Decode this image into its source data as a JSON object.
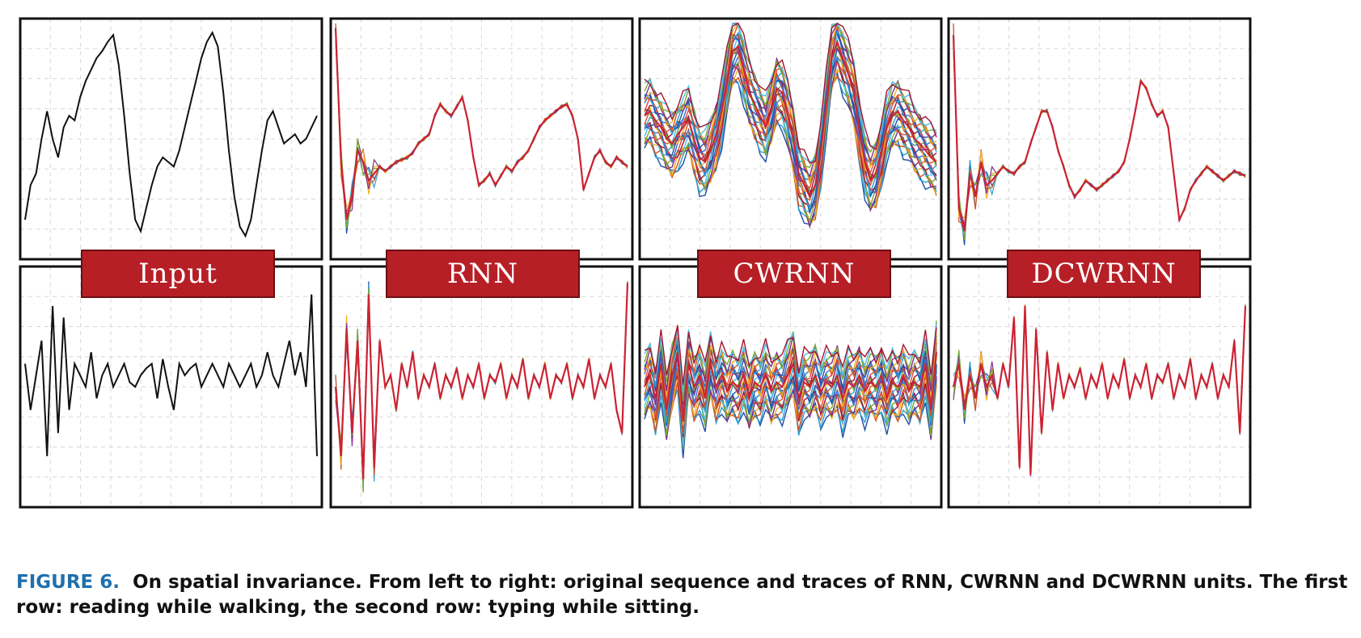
{
  "caption": {
    "figure_label": "FIGURE 6.",
    "text": "On spatial invariance. From left to right: original sequence and traces of RNN, CWRNN and DCWRNN units. The first row: reading while walking, the second row: typing while sitting."
  },
  "colors": {
    "input": "#111111",
    "trace": "#cc2233",
    "banner": "#b71f26",
    "caption_label": "#1f6fae",
    "multi": [
      "#1f4fa8",
      "#2a9fd6",
      "#d95319",
      "#edb120",
      "#7e2f8e",
      "#77ac30",
      "#4dbeee",
      "#a2142f",
      "#e34a33",
      "#3d6bd6"
    ]
  },
  "columns": [
    "Input",
    "RNN",
    "CWRNN",
    "DCWRNN"
  ],
  "chart_data": [
    {
      "type": "line",
      "panel": "row1-input",
      "style": "single",
      "y": [
        0.15,
        0.3,
        0.35,
        0.5,
        0.62,
        0.5,
        0.42,
        0.55,
        0.6,
        0.58,
        0.68,
        0.75,
        0.8,
        0.85,
        0.88,
        0.92,
        0.95,
        0.82,
        0.6,
        0.35,
        0.15,
        0.1,
        0.2,
        0.3,
        0.38,
        0.42,
        0.4,
        0.38,
        0.45,
        0.55,
        0.65,
        0.75,
        0.85,
        0.92,
        0.96,
        0.9,
        0.7,
        0.45,
        0.25,
        0.12,
        0.08,
        0.15,
        0.3,
        0.45,
        0.58,
        0.62,
        0.55,
        0.48,
        0.5,
        0.52,
        0.48,
        0.5,
        0.55,
        0.6
      ],
      "ylim": [
        0,
        1
      ]
    },
    {
      "type": "line",
      "panel": "row1-rnn",
      "style": "red-over-multi",
      "y": [
        0.98,
        0.4,
        0.15,
        0.25,
        0.45,
        0.4,
        0.32,
        0.35,
        0.38,
        0.36,
        0.38,
        0.4,
        0.41,
        0.42,
        0.44,
        0.48,
        0.5,
        0.52,
        0.6,
        0.65,
        0.62,
        0.6,
        0.64,
        0.68,
        0.58,
        0.42,
        0.3,
        0.32,
        0.35,
        0.3,
        0.34,
        0.38,
        0.36,
        0.4,
        0.42,
        0.45,
        0.5,
        0.55,
        0.58,
        0.6,
        0.62,
        0.64,
        0.65,
        0.6,
        0.5,
        0.28,
        0.35,
        0.42,
        0.45,
        0.4,
        0.38,
        0.42,
        0.4,
        0.38
      ],
      "ylim": [
        0,
        1
      ]
    },
    {
      "type": "line",
      "panel": "row1-cwrnn",
      "style": "multi-band",
      "y": [
        0.6,
        0.62,
        0.58,
        0.55,
        0.5,
        0.48,
        0.52,
        0.55,
        0.58,
        0.5,
        0.42,
        0.4,
        0.45,
        0.52,
        0.62,
        0.75,
        0.88,
        0.9,
        0.8,
        0.7,
        0.65,
        0.6,
        0.55,
        0.62,
        0.72,
        0.7,
        0.6,
        0.5,
        0.35,
        0.3,
        0.25,
        0.3,
        0.45,
        0.65,
        0.85,
        0.92,
        0.85,
        0.78,
        0.7,
        0.55,
        0.4,
        0.32,
        0.35,
        0.45,
        0.55,
        0.6,
        0.62,
        0.58,
        0.55,
        0.5,
        0.48,
        0.45,
        0.42,
        0.4
      ],
      "ylim": [
        0,
        1
      ]
    },
    {
      "type": "line",
      "panel": "row1-dcwrnn",
      "style": "red-over-multi",
      "y": [
        0.95,
        0.2,
        0.1,
        0.35,
        0.25,
        0.4,
        0.3,
        0.32,
        0.35,
        0.38,
        0.36,
        0.35,
        0.38,
        0.4,
        0.48,
        0.55,
        0.62,
        0.62,
        0.55,
        0.45,
        0.38,
        0.3,
        0.25,
        0.28,
        0.32,
        0.3,
        0.28,
        0.3,
        0.32,
        0.34,
        0.36,
        0.4,
        0.5,
        0.62,
        0.75,
        0.72,
        0.65,
        0.6,
        0.62,
        0.55,
        0.35,
        0.15,
        0.2,
        0.28,
        0.32,
        0.35,
        0.38,
        0.36,
        0.34,
        0.32,
        0.34,
        0.36,
        0.35,
        0.34
      ],
      "ylim": [
        0,
        1
      ]
    },
    {
      "type": "line",
      "panel": "row2-input",
      "style": "single",
      "y": [
        0.6,
        0.4,
        0.55,
        0.7,
        0.2,
        0.85,
        0.3,
        0.8,
        0.4,
        0.6,
        0.55,
        0.5,
        0.65,
        0.45,
        0.55,
        0.6,
        0.5,
        0.55,
        0.6,
        0.52,
        0.5,
        0.55,
        0.58,
        0.6,
        0.45,
        0.62,
        0.5,
        0.4,
        0.6,
        0.55,
        0.58,
        0.6,
        0.5,
        0.55,
        0.6,
        0.55,
        0.5,
        0.6,
        0.55,
        0.5,
        0.55,
        0.6,
        0.5,
        0.55,
        0.65,
        0.55,
        0.5,
        0.6,
        0.7,
        0.55,
        0.65,
        0.5,
        0.9,
        0.2
      ],
      "ylim": [
        0,
        1
      ]
    },
    {
      "type": "line",
      "panel": "row2-rnn",
      "style": "red-over-multi",
      "y": [
        0.5,
        0.2,
        0.75,
        0.3,
        0.7,
        0.1,
        0.9,
        0.15,
        0.7,
        0.5,
        0.55,
        0.4,
        0.6,
        0.5,
        0.65,
        0.45,
        0.55,
        0.5,
        0.6,
        0.45,
        0.55,
        0.5,
        0.58,
        0.45,
        0.55,
        0.5,
        0.6,
        0.45,
        0.55,
        0.52,
        0.6,
        0.45,
        0.55,
        0.5,
        0.62,
        0.45,
        0.55,
        0.5,
        0.6,
        0.45,
        0.55,
        0.52,
        0.6,
        0.45,
        0.55,
        0.5,
        0.62,
        0.45,
        0.55,
        0.5,
        0.6,
        0.4,
        0.3,
        0.95
      ],
      "ylim": [
        0,
        1
      ]
    },
    {
      "type": "line",
      "panel": "row2-cwrnn",
      "style": "multi-band",
      "y": [
        0.5,
        0.55,
        0.45,
        0.6,
        0.4,
        0.55,
        0.65,
        0.35,
        0.6,
        0.5,
        0.55,
        0.45,
        0.6,
        0.5,
        0.55,
        0.48,
        0.52,
        0.5,
        0.55,
        0.45,
        0.52,
        0.5,
        0.55,
        0.48,
        0.52,
        0.5,
        0.55,
        0.6,
        0.45,
        0.52,
        0.5,
        0.55,
        0.48,
        0.52,
        0.5,
        0.55,
        0.45,
        0.52,
        0.5,
        0.55,
        0.48,
        0.52,
        0.5,
        0.55,
        0.45,
        0.52,
        0.5,
        0.55,
        0.48,
        0.52,
        0.5,
        0.6,
        0.4,
        0.65
      ],
      "ylim": [
        0,
        1
      ]
    },
    {
      "type": "line",
      "panel": "row2-dcwrnn",
      "style": "red-over-multi",
      "y": [
        0.5,
        0.6,
        0.4,
        0.55,
        0.45,
        0.6,
        0.5,
        0.55,
        0.45,
        0.6,
        0.5,
        0.8,
        0.15,
        0.85,
        0.12,
        0.75,
        0.3,
        0.65,
        0.4,
        0.6,
        0.45,
        0.55,
        0.5,
        0.58,
        0.45,
        0.55,
        0.5,
        0.6,
        0.45,
        0.55,
        0.5,
        0.62,
        0.45,
        0.55,
        0.5,
        0.6,
        0.45,
        0.55,
        0.52,
        0.6,
        0.45,
        0.55,
        0.5,
        0.62,
        0.45,
        0.55,
        0.5,
        0.6,
        0.45,
        0.55,
        0.5,
        0.7,
        0.3,
        0.85
      ],
      "ylim": [
        0,
        1
      ]
    }
  ]
}
